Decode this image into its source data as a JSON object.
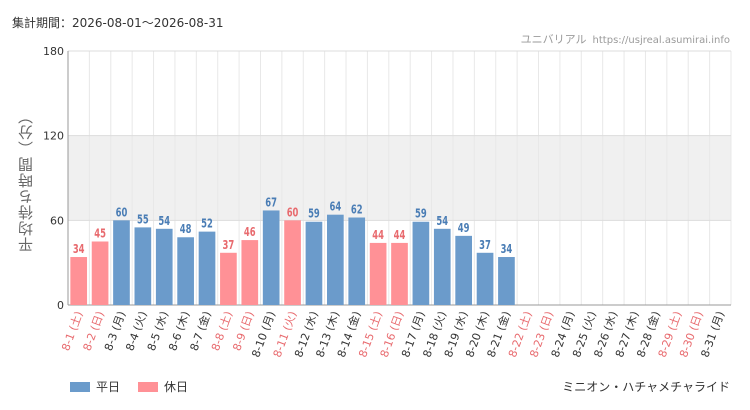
{
  "header": {
    "period": "集計期間：2026-08-01～2026-08-31",
    "site_name": "ユニバリアル",
    "site_url": "https://usjreal.asumirai.info"
  },
  "attraction": "ミニオン・ハチャメチャライド",
  "legend": {
    "weekday": "平日",
    "holiday": "休日"
  },
  "colors": {
    "weekday": "#6b9bcb",
    "holiday": "#ff9196",
    "weekday_label": "#4a7db5",
    "holiday_label": "#e86a6e",
    "band": "#f0f0f0",
    "grid": "#e8e8e8"
  },
  "chart_data": {
    "type": "bar",
    "title": "",
    "ylabel": "平均待ち時間（分）",
    "xlabel": "",
    "ylim": [
      0,
      180
    ],
    "yticks": [
      0,
      60,
      120,
      180
    ],
    "grid": true,
    "legend_position": "bottom-left",
    "categories": [
      "8-1 (土)",
      "8-2 (日)",
      "8-3 (月)",
      "8-4 (火)",
      "8-5 (水)",
      "8-6 (木)",
      "8-7 (金)",
      "8-8 (土)",
      "8-9 (日)",
      "8-10 (月)",
      "8-11 (火)",
      "8-12 (水)",
      "8-13 (木)",
      "8-14 (金)",
      "8-15 (土)",
      "8-16 (日)",
      "8-17 (月)",
      "8-18 (火)",
      "8-19 (水)",
      "8-20 (木)",
      "8-21 (金)",
      "8-22 (土)",
      "8-23 (日)",
      "8-24 (月)",
      "8-25 (火)",
      "8-26 (水)",
      "8-27 (木)",
      "8-28 (金)",
      "8-29 (土)",
      "8-30 (日)",
      "8-31 (月)"
    ],
    "values": [
      34,
      45,
      60,
      55,
      54,
      48,
      52,
      37,
      46,
      67,
      60,
      59,
      64,
      62,
      44,
      44,
      59,
      54,
      49,
      37,
      34,
      null,
      null,
      null,
      null,
      null,
      null,
      null,
      null,
      null,
      null
    ],
    "holiday": [
      true,
      true,
      false,
      false,
      false,
      false,
      false,
      true,
      true,
      false,
      true,
      false,
      false,
      false,
      true,
      true,
      false,
      false,
      false,
      false,
      false,
      true,
      true,
      false,
      false,
      false,
      false,
      false,
      true,
      true,
      false
    ],
    "series": [
      {
        "name": "平日"
      },
      {
        "name": "休日"
      }
    ]
  }
}
